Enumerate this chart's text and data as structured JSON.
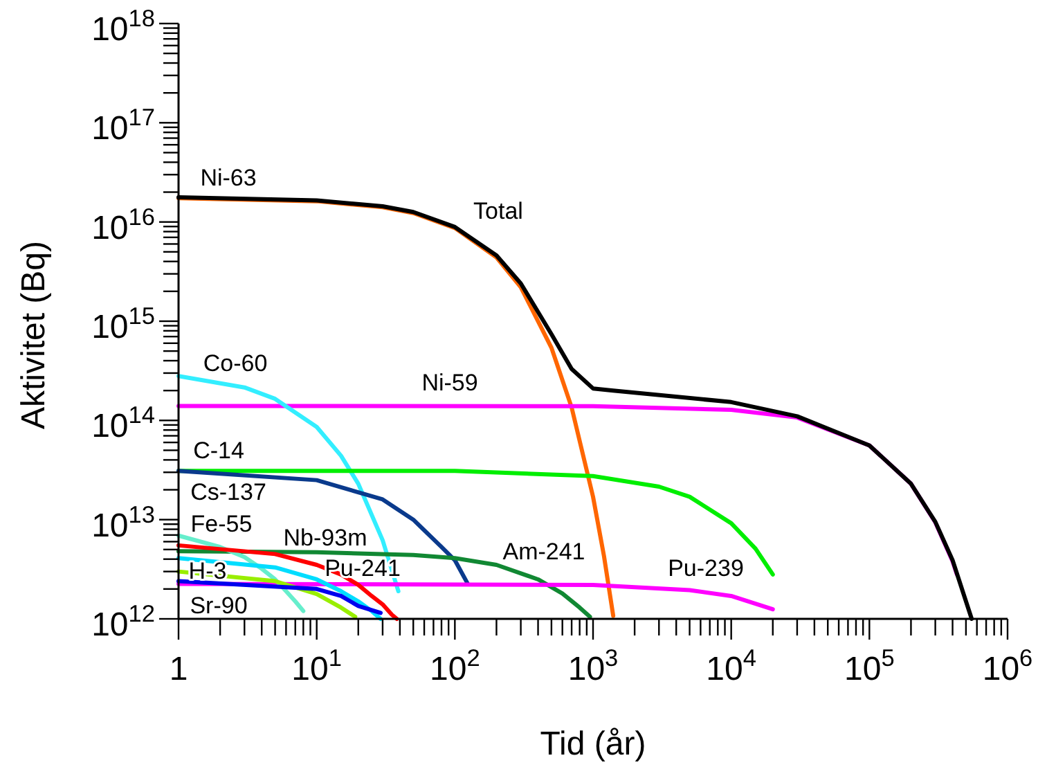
{
  "chart_data": {
    "type": "line",
    "xlabel": "Tid (år)",
    "ylabel": "Aktivitet (Bq)",
    "log": "xy",
    "grid": false,
    "line_style": "solid",
    "xlim": [
      1,
      1000000
    ],
    "ylim": [
      1000000000000,
      1000000000000000000
    ],
    "xticks": [
      {
        "value": 1,
        "label": "1"
      },
      {
        "value": 2,
        "label": null
      },
      {
        "value": 3,
        "label": null
      },
      {
        "value": 4,
        "label": null
      },
      {
        "value": 5,
        "label": null
      },
      {
        "value": 6,
        "label": null
      },
      {
        "value": 7,
        "label": null
      },
      {
        "value": 8,
        "label": null
      },
      {
        "value": 9,
        "label": null
      },
      {
        "value": 10,
        "label": "10$^{1}$"
      },
      {
        "value": 20,
        "label": null
      },
      {
        "value": 30,
        "label": null
      },
      {
        "value": 40,
        "label": null
      },
      {
        "value": 50,
        "label": null
      },
      {
        "value": 60,
        "label": null
      },
      {
        "value": 70,
        "label": null
      },
      {
        "value": 80,
        "label": null
      },
      {
        "value": 90,
        "label": null
      },
      {
        "value": 100,
        "label": "10$^{2}$"
      },
      {
        "value": 200,
        "label": null
      },
      {
        "value": 300,
        "label": null
      },
      {
        "value": 400,
        "label": null
      },
      {
        "value": 500,
        "label": null
      },
      {
        "value": 600,
        "label": null
      },
      {
        "value": 700,
        "label": null
      },
      {
        "value": 800,
        "label": null
      },
      {
        "value": 900,
        "label": null
      },
      {
        "value": 1000,
        "label": "10$^{3}$"
      },
      {
        "value": 2000,
        "label": null
      },
      {
        "value": 3000,
        "label": null
      },
      {
        "value": 4000,
        "label": null
      },
      {
        "value": 5000,
        "label": null
      },
      {
        "value": 6000,
        "label": null
      },
      {
        "value": 7000,
        "label": null
      },
      {
        "value": 8000,
        "label": null
      },
      {
        "value": 9000,
        "label": null
      },
      {
        "value": 10000,
        "label": "10$^{4}$"
      },
      {
        "value": 20000,
        "label": null
      },
      {
        "value": 30000,
        "label": null
      },
      {
        "value": 40000,
        "label": null
      },
      {
        "value": 50000,
        "label": null
      },
      {
        "value": 60000,
        "label": null
      },
      {
        "value": 70000,
        "label": null
      },
      {
        "value": 80000,
        "label": null
      },
      {
        "value": 90000,
        "label": null
      },
      {
        "value": 100000,
        "label": "10$^{5}$"
      },
      {
        "value": 200000,
        "label": null
      },
      {
        "value": 300000,
        "label": null
      },
      {
        "value": 400000,
        "label": null
      },
      {
        "value": 500000,
        "label": null
      },
      {
        "value": 600000,
        "label": null
      },
      {
        "value": 700000,
        "label": null
      },
      {
        "value": 800000,
        "label": null
      },
      {
        "value": 900000,
        "label": null
      },
      {
        "value": 1000000,
        "label": "10$^{6}$"
      }
    ],
    "yticks": [
      {
        "value": 1000000000000.0,
        "label": "10$^{12}$"
      },
      {
        "value": 2000000000000.0,
        "label": null
      },
      {
        "value": 3000000000000.0,
        "label": null
      },
      {
        "value": 4000000000000.0,
        "label": null
      },
      {
        "value": 5000000000000.0,
        "label": null
      },
      {
        "value": 6000000000000.0,
        "label": null
      },
      {
        "value": 7000000000000.0,
        "label": null
      },
      {
        "value": 8000000000000.0,
        "label": null
      },
      {
        "value": 9000000000000.0,
        "label": null
      },
      {
        "value": 10000000000000.0,
        "label": "10$^{13}$"
      },
      {
        "value": 20000000000000.0,
        "label": null
      },
      {
        "value": 30000000000000.0,
        "label": null
      },
      {
        "value": 40000000000000.0,
        "label": null
      },
      {
        "value": 50000000000000.0,
        "label": null
      },
      {
        "value": 60000000000000.0,
        "label": null
      },
      {
        "value": 70000000000000.0,
        "label": null
      },
      {
        "value": 80000000000000.0,
        "label": null
      },
      {
        "value": 90000000000000.0,
        "label": null
      },
      {
        "value": 100000000000000.0,
        "label": "10$^{14}$"
      },
      {
        "value": 200000000000000.0,
        "label": null
      },
      {
        "value": 300000000000000.0,
        "label": null
      },
      {
        "value": 400000000000000.0,
        "label": null
      },
      {
        "value": 500000000000000.0,
        "label": null
      },
      {
        "value": 600000000000000.0,
        "label": null
      },
      {
        "value": 700000000000000.0,
        "label": null
      },
      {
        "value": 800000000000000.0,
        "label": null
      },
      {
        "value": 900000000000000.0,
        "label": null
      },
      {
        "value": 1000000000000000.0,
        "label": "10$^{15}$"
      },
      {
        "value": 2000000000000000.0,
        "label": null
      },
      {
        "value": 3000000000000000.0,
        "label": null
      },
      {
        "value": 4000000000000000.0,
        "label": null
      },
      {
        "value": 5000000000000000.0,
        "label": null
      },
      {
        "value": 6000000000000000.0,
        "label": null
      },
      {
        "value": 7000000000000000.0,
        "label": null
      },
      {
        "value": 8000000000000000.0,
        "label": null
      },
      {
        "value": 9000000000000000.0,
        "label": null
      },
      {
        "value": 1e+16,
        "label": "10$^{16}$"
      },
      {
        "value": 2e+16,
        "label": null
      },
      {
        "value": 3e+16,
        "label": null
      },
      {
        "value": 4e+16,
        "label": null
      },
      {
        "value": 5e+16,
        "label": null
      },
      {
        "value": 6e+16,
        "label": null
      },
      {
        "value": 7e+16,
        "label": null
      },
      {
        "value": 8e+16,
        "label": null
      },
      {
        "value": 9e+16,
        "label": null
      },
      {
        "value": 1e+17,
        "label": "10$^{17}$"
      },
      {
        "value": 2e+17,
        "label": null
      },
      {
        "value": 3e+17,
        "label": null
      },
      {
        "value": 4e+17,
        "label": null
      },
      {
        "value": 5e+17,
        "label": null
      },
      {
        "value": 6e+17,
        "label": null
      },
      {
        "value": 7e+17,
        "label": null
      },
      {
        "value": 8e+17,
        "label": null
      },
      {
        "value": 9e+17,
        "label": null
      },
      {
        "value": 1e+18,
        "label": "10$^{18}$"
      }
    ],
    "series": [
      {
        "name": "Ni-63",
        "color": "#ff6600",
        "x": [
          1,
          10,
          30,
          50,
          100,
          200,
          300,
          500,
          700,
          1000,
          1200,
          1400
        ],
        "values": [
          1.74e+16,
          1.62e+16,
          1.41e+16,
          1.23e+16,
          8700000000000000.0,
          4400000000000000.0,
          2200000000000000.0,
          540000000000000.0,
          135000000000000.0,
          17000000000000.0,
          4300000000000.0,
          1070000000000.0
        ]
      },
      {
        "name": "Ni-59",
        "color": "#ff00ff",
        "x": [
          1,
          1000,
          10000,
          30000,
          100000,
          200000,
          300000,
          400000,
          430000
        ],
        "values": [
          140000000000000.0,
          139000000000000.0,
          128000000000000.0,
          107000000000000.0,
          56000000000000.0,
          23000000000000.0,
          9400000000000.0,
          3800000000000.0,
          2800000000000.0
        ]
      },
      {
        "name": "Co-60",
        "color": "#33eeff",
        "x": [
          1,
          3,
          5,
          10,
          15,
          20,
          30,
          39
        ],
        "values": [
          280000000000000.0,
          215000000000000.0,
          165000000000000.0,
          86000000000000.0,
          44000000000000.0,
          23000000000000.0,
          6200000000000.0,
          1900000000000.0
        ]
      },
      {
        "name": "C-14",
        "color": "#00ee00",
        "x": [
          1,
          100,
          1000,
          3000,
          5000,
          10000,
          15000,
          20000
        ],
        "values": [
          31000000000000.0,
          31000000000000.0,
          27500000000000.0,
          21500000000000.0,
          17000000000000.0,
          9200000000000.0,
          5100000000000.0,
          2800000000000.0
        ]
      },
      {
        "name": "Cs-137",
        "color": "#0a3a8c",
        "x": [
          1,
          10,
          30,
          50,
          80,
          100,
          123
        ],
        "values": [
          31000000000000.0,
          25000000000000.0,
          16000000000000.0,
          10000000000000.0,
          5300000000000.0,
          3900000000000.0,
          2300000000000.0
        ]
      },
      {
        "name": "Am-241",
        "color": "#118833",
        "x": [
          1,
          10,
          50,
          100,
          200,
          400,
          600,
          800,
          950
        ],
        "values": [
          4800000000000.0,
          4700000000000.0,
          4400000000000.0,
          4100000000000.0,
          3500000000000.0,
          2500000000000.0,
          1800000000000.0,
          1300000000000.0,
          1050000000000.0
        ]
      },
      {
        "name": "Pu-239",
        "color": "#ff00ff",
        "x": [
          1,
          1000,
          5000,
          10000,
          20000
        ],
        "values": [
          2250000000000.0,
          2200000000000.0,
          1950000000000.0,
          1700000000000.0,
          1250000000000.0
        ]
      },
      {
        "name": "Fe-55",
        "color": "#66eecc",
        "x": [
          1,
          2,
          3,
          4,
          5,
          6,
          7,
          8
        ],
        "values": [
          6900000000000.0,
          5300000000000.0,
          4200000000000.0,
          3200000000000.0,
          2500000000000.0,
          1900000000000.0,
          1500000000000.0,
          1200000000000.0
        ]
      },
      {
        "name": "Nb-93m",
        "color": "#ff0000",
        "x": [
          1,
          5,
          10,
          15,
          20,
          25,
          30,
          35,
          38
        ],
        "values": [
          5500000000000.0,
          4500000000000.0,
          3500000000000.0,
          2800000000000.0,
          2200000000000.0,
          1700000000000.0,
          1400000000000.0,
          1100000000000.0,
          1000000000000.0
        ]
      },
      {
        "name": "Pu-241",
        "color": "#00ddff",
        "x": [
          1,
          5,
          10,
          15,
          20,
          25,
          29
        ],
        "values": [
          4100000000000.0,
          3300000000000.0,
          2500000000000.0,
          1900000000000.0,
          1500000000000.0,
          1200000000000.0,
          1000000000000.0
        ]
      },
      {
        "name": "H-3",
        "color": "#99ee00",
        "x": [
          1,
          5,
          10,
          15,
          19
        ],
        "values": [
          3000000000000.0,
          2400000000000.0,
          1780000000000.0,
          1300000000000.0,
          1050000000000.0
        ]
      },
      {
        "name": "Sr-90",
        "color": "#0000ee",
        "x": [
          1,
          10,
          15,
          20,
          29
        ],
        "values": [
          2400000000000.0,
          2000000000000.0,
          1700000000000.0,
          1350000000000.0,
          1150000000000.0
        ]
      },
      {
        "name": "Total",
        "color": "#000000",
        "x": [
          1,
          10,
          30,
          50,
          100,
          200,
          300,
          500,
          700,
          1000,
          1400,
          10000,
          30000,
          100000,
          200000,
          300000,
          400000,
          550000
        ],
        "values": [
          1.77e+16,
          1.65e+16,
          1.44e+16,
          1.26e+16,
          8900000000000000.0,
          4600000000000000.0,
          2400000000000000.0,
          740000000000000.0,
          330000000000000.0,
          210000000000000.0,
          200000000000000.0,
          153000000000000.0,
          110000000000000.0,
          56000000000000.0,
          23000000000000.0,
          9500000000000.0,
          3900000000000.0,
          1000000000000.0
        ]
      }
    ]
  }
}
